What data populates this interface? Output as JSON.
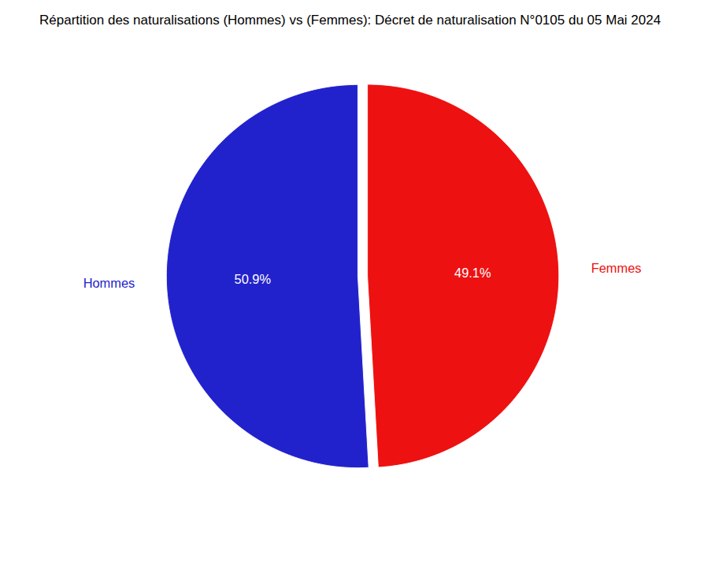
{
  "chart_data": {
    "type": "pie",
    "title": "Répartition des naturalisations (Hommes) vs (Femmes): Décret de naturalisation N°0105 du 05 Mai 2024",
    "categories": [
      "Hommes",
      "Femmes"
    ],
    "values": [
      50.9,
      49.1
    ],
    "value_labels": [
      "50.9%",
      "49.1%"
    ],
    "colors": [
      "#2222cc",
      "#ee1111"
    ],
    "data_labels": true,
    "legend": false
  }
}
